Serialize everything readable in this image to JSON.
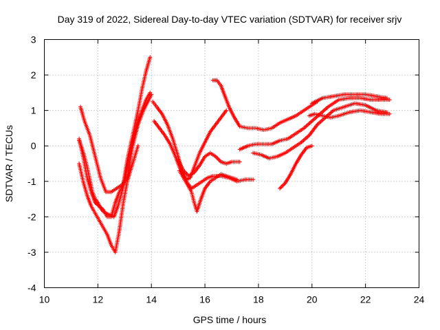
{
  "chart_data": {
    "type": "scatter",
    "title": "Day 319 of 2022, Sidereal Day-to-day VTEC variation (SDTVAR) for receiver srjv",
    "xlabel": "GPS time / hours",
    "ylabel": "SDTVAR / TECUs",
    "xlim": [
      10,
      24
    ],
    "ylim": [
      -4,
      3
    ],
    "xticks": [
      "10",
      "12",
      "14",
      "16",
      "18",
      "20",
      "22",
      "24"
    ],
    "yticks": [
      "-4",
      "-3",
      "-2",
      "-1",
      "0",
      "1",
      "2",
      "3"
    ],
    "grid": true,
    "marker": "+",
    "color": "#ff0000",
    "series": [
      {
        "name": "track-1",
        "x": [
          11.35,
          11.5,
          11.7,
          11.9,
          12.1,
          12.3,
          12.5,
          12.7,
          12.9,
          13.1,
          13.3,
          13.5,
          13.7,
          13.9,
          14.0
        ],
        "y": [
          1.1,
          0.7,
          0.3,
          -0.3,
          -0.9,
          -1.3,
          -1.3,
          -1.2,
          -1.1,
          -0.9,
          0.0,
          0.6,
          1.0,
          1.3,
          1.45
        ]
      },
      {
        "name": "track-2",
        "x": [
          11.3,
          11.45,
          11.6,
          11.75,
          11.9,
          12.05,
          12.2,
          12.35,
          12.5,
          12.65,
          12.8,
          12.95,
          13.1,
          13.3,
          13.5,
          13.65,
          13.8,
          13.95
        ],
        "y": [
          0.2,
          -0.3,
          -0.9,
          -1.3,
          -1.6,
          -1.7,
          -1.8,
          -2.0,
          -2.0,
          -1.6,
          -1.3,
          -1.1,
          -0.4,
          0.3,
          1.0,
          1.6,
          2.1,
          2.5
        ]
      },
      {
        "name": "track-3",
        "x": [
          11.3,
          11.45,
          11.6,
          11.75,
          11.9,
          12.05,
          12.2,
          12.35,
          12.5,
          12.65,
          12.8,
          12.95,
          13.1,
          13.3,
          13.5
        ],
        "y": [
          -0.5,
          -1.0,
          -1.4,
          -1.7,
          -1.9,
          -2.1,
          -2.3,
          -2.5,
          -2.8,
          -3.0,
          -2.4,
          -1.6,
          -1.0,
          -0.5,
          0.0
        ]
      },
      {
        "name": "track-4",
        "x": [
          11.3,
          11.4,
          11.5,
          11.6,
          11.7,
          11.8,
          11.9,
          12.0,
          12.1,
          12.2,
          12.3,
          12.45,
          12.6,
          12.75,
          12.9,
          13.05,
          13.2,
          13.35,
          13.5,
          13.65,
          13.8,
          13.95
        ],
        "y": [
          0.15,
          -0.05,
          -0.3,
          -0.6,
          -0.95,
          -1.3,
          -1.5,
          -1.6,
          -1.75,
          -1.85,
          -1.9,
          -1.95,
          -2.0,
          -1.7,
          -1.3,
          -0.8,
          -0.2,
          0.3,
          0.7,
          1.0,
          1.3,
          1.5
        ]
      },
      {
        "name": "track-5",
        "x": [
          14.05,
          14.2,
          14.4,
          14.6,
          14.8,
          15.0,
          15.15,
          15.3,
          15.45,
          15.6,
          15.8,
          16.0,
          16.2,
          16.4,
          16.6,
          16.8
        ],
        "y": [
          1.25,
          1.1,
          0.9,
          0.6,
          0.2,
          -0.3,
          -0.7,
          -0.95,
          -0.9,
          -0.6,
          -0.2,
          0.1,
          0.4,
          0.6,
          0.8,
          1.0
        ]
      },
      {
        "name": "track-6",
        "x": [
          14.1,
          14.3,
          14.5,
          14.7,
          14.9,
          15.05,
          15.2,
          15.35,
          15.5,
          15.7,
          15.9,
          16.1,
          16.3,
          16.6,
          16.9,
          17.2,
          17.5,
          17.8
        ],
        "y": [
          0.7,
          0.5,
          0.3,
          0.05,
          -0.3,
          -0.6,
          -0.85,
          -1.05,
          -1.2,
          -1.1,
          -1.0,
          -0.9,
          -0.85,
          -0.85,
          -0.9,
          -1.0,
          -0.95,
          -0.95
        ]
      },
      {
        "name": "track-7",
        "x": [
          15.05,
          15.2,
          15.35,
          15.5,
          15.6,
          15.7,
          15.85,
          16.0,
          16.2,
          16.4,
          16.6,
          16.8,
          17.0,
          17.2
        ],
        "y": [
          -0.7,
          -0.9,
          -1.1,
          -1.3,
          -1.6,
          -1.85,
          -1.5,
          -1.2,
          -1.0,
          -0.9,
          -0.8,
          -0.85,
          -0.9,
          -0.95
        ]
      },
      {
        "name": "track-8",
        "x": [
          15.0,
          15.2,
          15.4,
          15.6,
          15.8,
          16.0,
          16.2,
          16.4,
          16.6,
          16.8,
          17.0,
          17.3
        ],
        "y": [
          -0.4,
          -0.7,
          -0.85,
          -0.75,
          -0.55,
          -0.3,
          -0.2,
          -0.3,
          -0.45,
          -0.5,
          -0.45,
          -0.45
        ]
      },
      {
        "name": "track-9",
        "x": [
          16.3,
          16.45,
          16.6,
          16.75,
          16.9,
          17.1,
          17.3,
          17.6,
          17.9,
          18.2,
          18.5,
          18.8,
          19.1,
          19.4,
          19.7,
          20.0,
          20.2
        ],
        "y": [
          1.85,
          1.85,
          1.7,
          1.4,
          1.1,
          0.8,
          0.55,
          0.5,
          0.5,
          0.45,
          0.5,
          0.65,
          0.75,
          0.85,
          1.0,
          1.15,
          1.25
        ]
      },
      {
        "name": "track-10",
        "x": [
          17.3,
          17.6,
          17.9,
          18.2,
          18.5,
          18.8,
          19.1,
          19.4,
          19.7,
          20.0,
          20.3,
          20.6,
          21.0,
          21.4,
          21.8,
          22.2,
          22.6,
          22.9
        ],
        "y": [
          -0.1,
          0.0,
          0.05,
          0.05,
          0.05,
          0.15,
          0.2,
          0.35,
          0.5,
          0.7,
          0.9,
          1.1,
          1.3,
          1.35,
          1.35,
          1.3,
          1.3,
          1.3
        ]
      },
      {
        "name": "track-11",
        "x": [
          17.8,
          18.1,
          18.4,
          18.7,
          19.0,
          19.3,
          19.6,
          19.9,
          20.2,
          20.5,
          20.8,
          21.2,
          21.6,
          22.0,
          22.4,
          22.8
        ],
        "y": [
          -0.2,
          -0.25,
          -0.35,
          -0.3,
          -0.2,
          -0.05,
          0.1,
          0.3,
          0.6,
          0.8,
          1.0,
          1.1,
          1.2,
          1.15,
          1.0,
          0.95
        ]
      },
      {
        "name": "track-12",
        "x": [
          18.8,
          19.0,
          19.2,
          19.4,
          19.6,
          19.8,
          20.0
        ],
        "y": [
          -1.2,
          -1.05,
          -0.8,
          -0.5,
          -0.25,
          -0.05,
          0.0
        ]
      },
      {
        "name": "track-13",
        "x": [
          19.9,
          20.1,
          20.4,
          20.7,
          21.0,
          21.4,
          21.8,
          22.2,
          22.6,
          22.9
        ],
        "y": [
          0.85,
          0.9,
          0.85,
          0.8,
          0.85,
          0.95,
          1.0,
          0.95,
          0.9,
          0.9
        ]
      },
      {
        "name": "track-14",
        "x": [
          20.0,
          20.4,
          20.8,
          21.2,
          21.6,
          22.0,
          22.4,
          22.8
        ],
        "y": [
          1.2,
          1.35,
          1.4,
          1.45,
          1.45,
          1.45,
          1.4,
          1.35
        ]
      }
    ]
  }
}
